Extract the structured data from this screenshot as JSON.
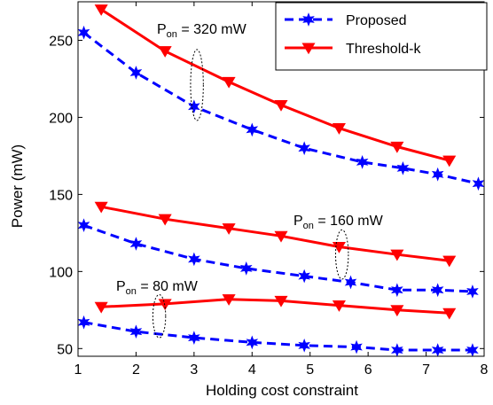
{
  "chart_data": {
    "type": "line",
    "title": "",
    "xlabel": "Holding cost constraint",
    "ylabel": "Power (mW)",
    "xlim": [
      1,
      8
    ],
    "ylim": [
      45,
      275
    ],
    "xticks": [
      1,
      2,
      3,
      4,
      5,
      6,
      7,
      8
    ],
    "yticks": [
      50,
      100,
      150,
      200,
      250
    ],
    "grid": false,
    "legend_position": "top-right",
    "series": [
      {
        "name": "Proposed",
        "color": "#0000ff",
        "style": "dashed",
        "marker": "star",
        "groups": [
          {
            "x": [
              1.1,
              2.0,
              3.0,
              4.0,
              4.9,
              5.9,
              6.6,
              7.2,
              7.9
            ],
            "y": [
              255,
              229,
              207,
              192,
              180,
              171,
              167,
              163,
              157
            ]
          },
          {
            "x": [
              1.1,
              2.0,
              3.0,
              3.9,
              4.9,
              5.7,
              6.5,
              7.2,
              7.8
            ],
            "y": [
              130,
              118,
              108,
              102,
              97,
              93,
              88,
              88,
              87
            ]
          },
          {
            "x": [
              1.1,
              2.0,
              3.0,
              4.0,
              4.9,
              5.8,
              6.5,
              7.2,
              7.8
            ],
            "y": [
              67,
              61,
              57,
              54,
              52,
              51,
              49,
              49,
              49
            ]
          }
        ]
      },
      {
        "name": "Threshold-k",
        "color": "#ff0000",
        "style": "solid",
        "marker": "triangle-down",
        "groups": [
          {
            "x": [
              1.4,
              2.5,
              3.6,
              4.5,
              5.5,
              6.5,
              7.4
            ],
            "y": [
              270,
              243,
              223,
              208,
              193,
              181,
              172
            ]
          },
          {
            "x": [
              1.4,
              2.5,
              3.6,
              4.5,
              5.5,
              6.5,
              7.4
            ],
            "y": [
              142,
              134,
              128,
              123,
              116,
              111,
              107
            ]
          },
          {
            "x": [
              1.4,
              2.5,
              3.6,
              4.5,
              5.5,
              6.5,
              7.4
            ],
            "y": [
              77,
              79,
              82,
              81,
              78,
              75,
              73
            ]
          }
        ]
      }
    ],
    "annotations": [
      {
        "main": "P",
        "sub": "on",
        "rest": " = 320 mW",
        "ellipse_center": [
          3.05,
          221
        ],
        "ellipse_rx": 0.11,
        "ellipse_ry": 23
      },
      {
        "main": "P",
        "sub": "on",
        "rest": " = 160 mW",
        "ellipse_center": [
          5.55,
          111
        ],
        "ellipse_rx": 0.11,
        "ellipse_ry": 16
      },
      {
        "main": "P",
        "sub": "on",
        "rest": " = 80 mW",
        "ellipse_center": [
          2.4,
          71
        ],
        "ellipse_rx": 0.11,
        "ellipse_ry": 14
      }
    ]
  }
}
